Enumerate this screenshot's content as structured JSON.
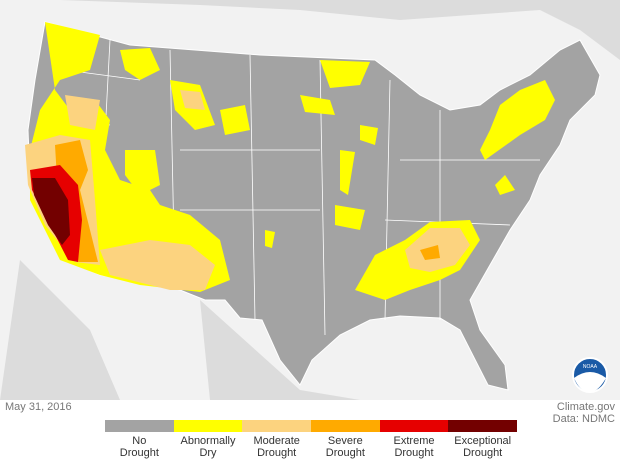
{
  "map": {
    "date": "May 31, 2016",
    "credit": "Climate.gov",
    "source": "Data: NDMC",
    "logo": "NOAA",
    "legend": [
      {
        "label": "No Drought",
        "color": "#a3a3a3"
      },
      {
        "label": "Abnormally Dry",
        "color": "#ffff00"
      },
      {
        "label": "Moderate Drought",
        "color": "#fcd37f"
      },
      {
        "label": "Severe Drought",
        "color": "#ffaa00"
      },
      {
        "label": "Extreme Drought",
        "color": "#e60000"
      },
      {
        "label": "Exceptional Drought",
        "color": "#730000"
      }
    ]
  }
}
